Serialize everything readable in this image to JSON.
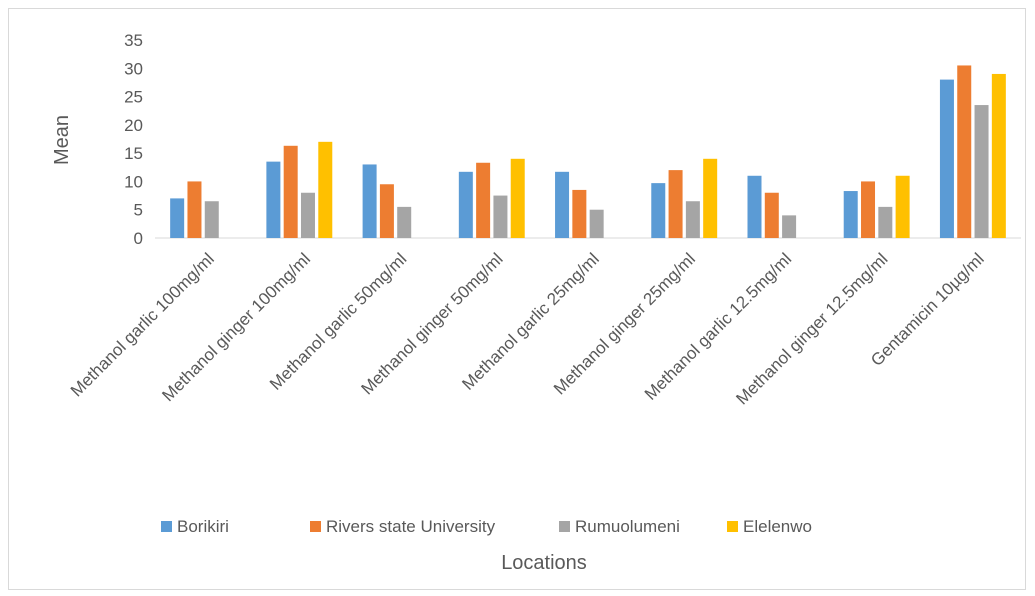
{
  "chart_data": {
    "type": "bar",
    "title": "",
    "xlabel": "Locations",
    "ylabel": "Mean",
    "ylim": [
      0,
      35
    ],
    "yticks": [
      0,
      5,
      10,
      15,
      20,
      25,
      30,
      35
    ],
    "grid": false,
    "legend_position": "bottom",
    "categories": [
      "Methanol garlic 100mg/ml",
      "Methanol ginger 100mg/ml",
      "Methanol garlic 50mg/ml",
      "Methanol ginger 50mg/ml",
      "Methanol garlic 25mg/ml",
      "Methanol ginger 25mg/ml",
      "Methanol garlic 12.5mg/ml",
      "Methanol ginger 12.5mg/ml",
      "Gentamicin 10µg/ml"
    ],
    "series": [
      {
        "name": "Borikiri",
        "color": "#5B9BD5",
        "values": [
          7,
          13.5,
          13,
          11.7,
          11.7,
          9.7,
          11,
          8.3,
          28
        ]
      },
      {
        "name": "Rivers state University",
        "color": "#ED7D31",
        "values": [
          10,
          16.3,
          9.5,
          13.3,
          8.5,
          12,
          8,
          10,
          30.5
        ]
      },
      {
        "name": "Rumuolumeni",
        "color": "#A5A5A5",
        "values": [
          6.5,
          8,
          5.5,
          7.5,
          5,
          6.5,
          4,
          5.5,
          23.5
        ]
      },
      {
        "name": "Elelenwo",
        "color": "#FFC000",
        "values": [
          0,
          17,
          0,
          14,
          0,
          14,
          0,
          11,
          29
        ]
      }
    ]
  }
}
